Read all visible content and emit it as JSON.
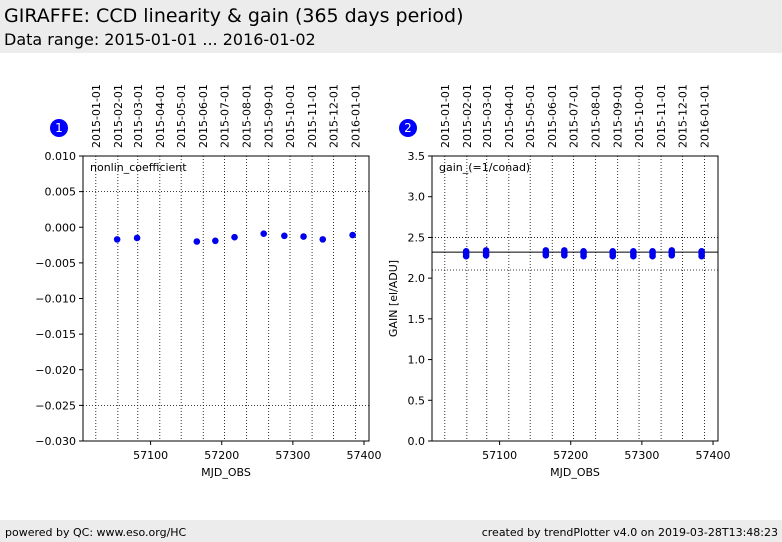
{
  "header": {
    "title": "GIRAFFE: CCD linearity & gain (365 days period)",
    "subtitle": "Data range: 2015-01-01 ... 2016-01-02"
  },
  "footer": {
    "left": "powered by QC: www.eso.org/HC",
    "right": "created by trendPlotter v4.0 on 2019-03-28T13:48:23"
  },
  "style": {
    "point_color": "#0000ee",
    "marker_color": "#0000ff"
  },
  "chart_data": [
    {
      "type": "scatter",
      "panel_marker": "1",
      "annotation": "nonlin_coefficient",
      "xlabel": "MJD_OBS",
      "ylabel": "",
      "xlim": [
        57005,
        57407
      ],
      "ylim": [
        -0.03,
        0.01
      ],
      "x_ticks": [
        57100,
        57200,
        57300,
        57400
      ],
      "y_ticks": [
        0.01,
        0.005,
        0.0,
        -0.005,
        -0.01,
        -0.015,
        -0.02,
        -0.025,
        -0.03
      ],
      "y_tick_labels": [
        "0.010",
        "0.005",
        "0.000",
        "−0.005",
        "−0.010",
        "−0.015",
        "−0.020",
        "−0.025",
        "−0.030"
      ],
      "hlines_dotted": [
        0.005,
        -0.025
      ],
      "date_ticks": [
        {
          "label": "2015-01-01",
          "mjd": 57023
        },
        {
          "label": "2015-02-01",
          "mjd": 57054
        },
        {
          "label": "2015-03-01",
          "mjd": 57082
        },
        {
          "label": "2015-04-01",
          "mjd": 57113
        },
        {
          "label": "2015-05-01",
          "mjd": 57143
        },
        {
          "label": "2015-06-01",
          "mjd": 57174
        },
        {
          "label": "2015-07-01",
          "mjd": 57204
        },
        {
          "label": "2015-08-01",
          "mjd": 57235
        },
        {
          "label": "2015-09-01",
          "mjd": 57266
        },
        {
          "label": "2015-10-01",
          "mjd": 57296
        },
        {
          "label": "2015-11-01",
          "mjd": 57327
        },
        {
          "label": "2015-12-01",
          "mjd": 57357
        },
        {
          "label": "2016-01-01",
          "mjd": 57388
        }
      ],
      "points": [
        {
          "x": 57053,
          "y": -0.0017
        },
        {
          "x": 57081,
          "y": -0.0015
        },
        {
          "x": 57165,
          "y": -0.002
        },
        {
          "x": 57191,
          "y": -0.0019
        },
        {
          "x": 57218,
          "y": -0.0014
        },
        {
          "x": 57259,
          "y": -0.0009
        },
        {
          "x": 57288,
          "y": -0.0012
        },
        {
          "x": 57315,
          "y": -0.0013
        },
        {
          "x": 57342,
          "y": -0.0017
        },
        {
          "x": 57384,
          "y": -0.0011
        }
      ]
    },
    {
      "type": "scatter",
      "panel_marker": "2",
      "annotation": "gain_(=1/conad)",
      "xlabel": "MJD_OBS",
      "ylabel": "GAIN [el/ADU]",
      "xlim": [
        57005,
        57407
      ],
      "ylim": [
        0.0,
        3.5
      ],
      "x_ticks": [
        57100,
        57200,
        57300,
        57400
      ],
      "y_ticks": [
        3.5,
        3.0,
        2.5,
        2.0,
        1.5,
        1.0,
        0.5,
        0.0
      ],
      "y_tick_labels": [
        "3.5",
        "3.0",
        "2.5",
        "2.0",
        "1.5",
        "1.0",
        "0.5",
        "0.0"
      ],
      "hline_solid": 2.32,
      "hlines_dotted": [
        2.5,
        2.1
      ],
      "date_ticks": [
        {
          "label": "2015-01-01",
          "mjd": 57023
        },
        {
          "label": "2015-02-01",
          "mjd": 57054
        },
        {
          "label": "2015-03-01",
          "mjd": 57082
        },
        {
          "label": "2015-04-01",
          "mjd": 57113
        },
        {
          "label": "2015-05-01",
          "mjd": 57143
        },
        {
          "label": "2015-06-01",
          "mjd": 57174
        },
        {
          "label": "2015-07-01",
          "mjd": 57204
        },
        {
          "label": "2015-08-01",
          "mjd": 57235
        },
        {
          "label": "2015-09-01",
          "mjd": 57266
        },
        {
          "label": "2015-10-01",
          "mjd": 57296
        },
        {
          "label": "2015-11-01",
          "mjd": 57327
        },
        {
          "label": "2015-12-01",
          "mjd": 57357
        },
        {
          "label": "2016-01-01",
          "mjd": 57388
        }
      ],
      "points": [
        {
          "x": 57053,
          "y": 2.27
        },
        {
          "x": 57053,
          "y": 2.3
        },
        {
          "x": 57053,
          "y": 2.33
        },
        {
          "x": 57081,
          "y": 2.28
        },
        {
          "x": 57081,
          "y": 2.31
        },
        {
          "x": 57081,
          "y": 2.34
        },
        {
          "x": 57165,
          "y": 2.28
        },
        {
          "x": 57165,
          "y": 2.31
        },
        {
          "x": 57165,
          "y": 2.34
        },
        {
          "x": 57191,
          "y": 2.28
        },
        {
          "x": 57191,
          "y": 2.31
        },
        {
          "x": 57191,
          "y": 2.34
        },
        {
          "x": 57218,
          "y": 2.27
        },
        {
          "x": 57218,
          "y": 2.3
        },
        {
          "x": 57218,
          "y": 2.33
        },
        {
          "x": 57259,
          "y": 2.27
        },
        {
          "x": 57259,
          "y": 2.3
        },
        {
          "x": 57259,
          "y": 2.33
        },
        {
          "x": 57288,
          "y": 2.27
        },
        {
          "x": 57288,
          "y": 2.3
        },
        {
          "x": 57288,
          "y": 2.33
        },
        {
          "x": 57315,
          "y": 2.27
        },
        {
          "x": 57315,
          "y": 2.3
        },
        {
          "x": 57315,
          "y": 2.33
        },
        {
          "x": 57342,
          "y": 2.28
        },
        {
          "x": 57342,
          "y": 2.31
        },
        {
          "x": 57342,
          "y": 2.34
        },
        {
          "x": 57384,
          "y": 2.27
        },
        {
          "x": 57384,
          "y": 2.3
        },
        {
          "x": 57384,
          "y": 2.33
        }
      ]
    }
  ]
}
